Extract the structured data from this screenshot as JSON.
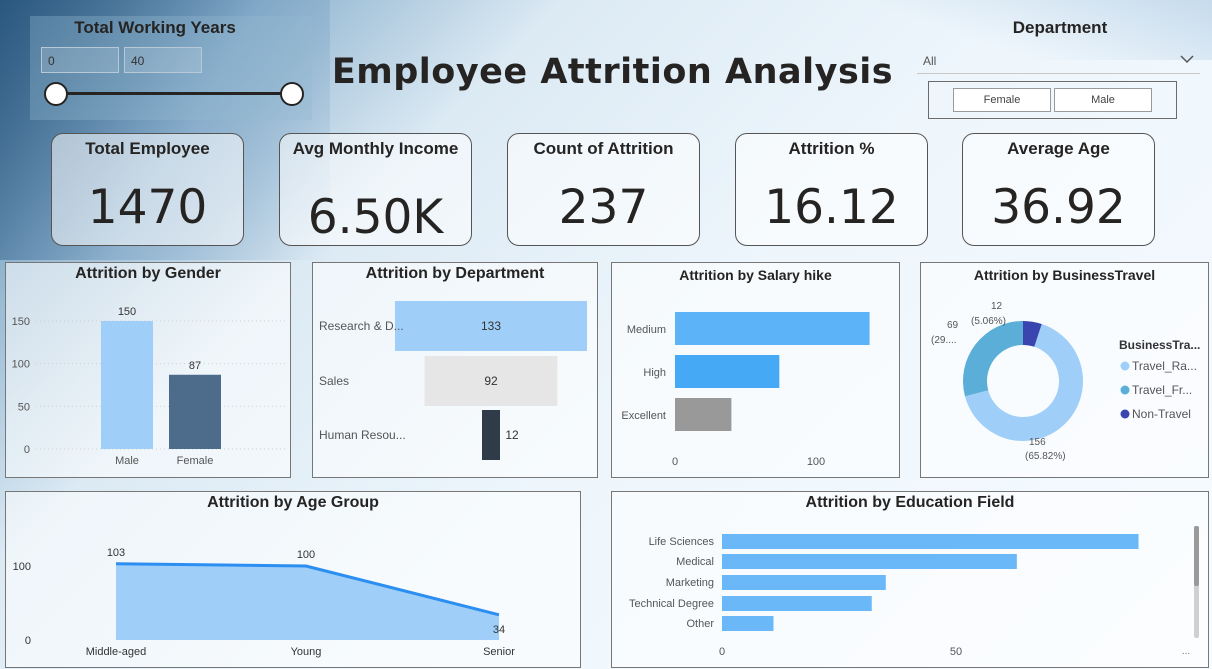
{
  "title": "Employee Attrition Analysis",
  "slicer": {
    "title": "Total Working Years",
    "min": "0",
    "max": "40"
  },
  "department": {
    "title": "Department",
    "selected": "All",
    "gender_options": [
      "Female",
      "Male"
    ]
  },
  "kpis": [
    {
      "label": "Total Employee",
      "value": "1470"
    },
    {
      "label": "Avg Monthly Income",
      "value": "6.50K"
    },
    {
      "label": "Count of Attrition",
      "value": "237"
    },
    {
      "label": "Attrition %",
      "value": "16.12"
    },
    {
      "label": "Average Age",
      "value": "36.92"
    }
  ],
  "colors": {
    "light_blue": "#9fcff8",
    "dark_blue": "#4d6b8b",
    "bright_blue": "#46a9f5",
    "gray": "#999999",
    "navy": "#3a45b0",
    "line_blue": "#2b8ef0"
  },
  "chart_data": [
    {
      "type": "bar",
      "title": "Attrition by Gender",
      "categories": [
        "Male",
        "Female"
      ],
      "values": [
        150,
        87
      ],
      "yticks": [
        0,
        50,
        100,
        150
      ],
      "ylim": [
        0,
        160
      ]
    },
    {
      "type": "bar",
      "orientation": "funnel",
      "title": "Attrition by Department",
      "categories": [
        "Research & D...",
        "Sales",
        "Human Resou..."
      ],
      "values": [
        133,
        92,
        12
      ]
    },
    {
      "type": "bar",
      "orientation": "horizontal",
      "title": "Attrition by Salary hike",
      "categories": [
        "Medium",
        "High",
        "Excellent"
      ],
      "values": [
        138,
        74,
        40
      ],
      "xticks": [
        0,
        100
      ],
      "xlim": [
        0,
        150
      ]
    },
    {
      "type": "pie",
      "style": "donut",
      "title": "Attrition by BusinessTravel",
      "legend_title": "BusinessTra...",
      "legend_placement": "right",
      "slices": [
        {
          "name": "Travel_Ra...",
          "value": 156,
          "label": "156",
          "pct": "(65.82%)"
        },
        {
          "name": "Travel_Fr...",
          "value": 69,
          "label": "69",
          "pct": "(29...."
        },
        {
          "name": "Non-Travel",
          "value": 12,
          "label": "12",
          "pct": "(5.06%)"
        }
      ]
    },
    {
      "type": "area",
      "title": "Attrition by Age Group",
      "categories": [
        "Middle-aged",
        "Young",
        "Senior"
      ],
      "values": [
        103,
        100,
        34
      ],
      "yticks": [
        0,
        100
      ]
    },
    {
      "type": "bar",
      "orientation": "horizontal",
      "title": "Attrition by Education Field",
      "categories": [
        "Life Sciences",
        "Medical",
        "Marketing",
        "Technical Degree",
        "Other"
      ],
      "values": [
        89,
        63,
        35,
        32,
        11
      ],
      "xticks": [
        0,
        50
      ],
      "xlim": [
        0,
        100
      ],
      "more_indicator": "..."
    }
  ]
}
